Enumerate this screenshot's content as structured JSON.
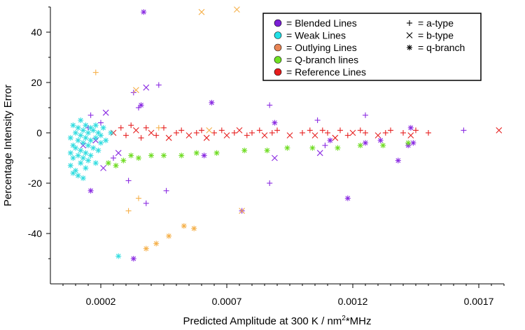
{
  "chart_data": {
    "type": "scatter",
    "title": "",
    "xlabel": "Predicted Amplitude at 300 K / nm",
    "xlabel_sup": "2",
    "xlabel_tail": "*MHz",
    "ylabel": "Percentage Intensity Error",
    "xlim": [
      0.0,
      0.0018
    ],
    "ylim": [
      -60,
      50
    ],
    "xticks": [
      0.0002,
      0.0007,
      0.0012,
      0.0017
    ],
    "xtick_labels": [
      "0.0002",
      "0.0007",
      "0.0012",
      "0.0017"
    ],
    "yticks": [
      -40,
      -20,
      0,
      20,
      40
    ],
    "ytick_labels": [
      "-40",
      "-20",
      "0",
      "20",
      "40"
    ],
    "grid": false,
    "legend_position": "top-right",
    "colors": {
      "blended": "#8a2be2",
      "weak": "#33dde0",
      "outlying": "#f5b04a",
      "qbranch": "#6fdc22",
      "reference": "#e62020"
    },
    "legend": {
      "colors": [
        {
          "key": "blended",
          "label": "= Blended Lines",
          "color": "#7b1fd6"
        },
        {
          "key": "weak",
          "label": "= Weak Lines",
          "color": "#22e0e6"
        },
        {
          "key": "outlying",
          "label": "= Outlying Lines",
          "color": "#e88455"
        },
        {
          "key": "qbranch",
          "label": "= Q-branch lines",
          "color": "#6fe022"
        },
        {
          "key": "reference",
          "label": "= Reference Lines",
          "color": "#e61c1c"
        }
      ],
      "markers": [
        {
          "marker": "plus",
          "label": "= a-type"
        },
        {
          "marker": "x",
          "label": "= b-type"
        },
        {
          "marker": "star",
          "label": "= q-branch"
        }
      ]
    },
    "series": [
      {
        "key": "reference",
        "color": "#e62020",
        "points": [
          [
            0.00025,
            0,
            "x"
          ],
          [
            0.00028,
            2,
            "plus"
          ],
          [
            0.0003,
            -1,
            "plus"
          ],
          [
            0.00032,
            3,
            "plus"
          ],
          [
            0.00034,
            1,
            "x"
          ],
          [
            0.00036,
            -2,
            "plus"
          ],
          [
            0.00038,
            2,
            "plus"
          ],
          [
            0.0004,
            0,
            "x"
          ],
          [
            0.00042,
            -1,
            "plus"
          ],
          [
            0.00045,
            2,
            "plus"
          ],
          [
            0.00047,
            -2,
            "x"
          ],
          [
            0.0005,
            0,
            "plus"
          ],
          [
            0.00052,
            1,
            "plus"
          ],
          [
            0.00055,
            -1,
            "x"
          ],
          [
            0.00058,
            0,
            "plus"
          ],
          [
            0.0006,
            1,
            "plus"
          ],
          [
            0.00062,
            -2,
            "x"
          ],
          [
            0.00065,
            0,
            "plus"
          ],
          [
            0.00068,
            1,
            "plus"
          ],
          [
            0.0007,
            -1,
            "x"
          ],
          [
            0.00073,
            0,
            "plus"
          ],
          [
            0.00075,
            1,
            "x"
          ],
          [
            0.00078,
            -1,
            "plus"
          ],
          [
            0.0008,
            0,
            "plus"
          ],
          [
            0.00083,
            1,
            "plus"
          ],
          [
            0.00085,
            -1,
            "x"
          ],
          [
            0.00088,
            0,
            "plus"
          ],
          [
            0.0009,
            1,
            "plus"
          ],
          [
            0.00095,
            -1,
            "x"
          ],
          [
            0.001,
            0,
            "plus"
          ],
          [
            0.00103,
            1,
            "plus"
          ],
          [
            0.00105,
            -1,
            "x"
          ],
          [
            0.00108,
            1,
            "plus"
          ],
          [
            0.0011,
            0,
            "plus"
          ],
          [
            0.00113,
            -2,
            "x"
          ],
          [
            0.00115,
            1,
            "plus"
          ],
          [
            0.00118,
            -1,
            "plus"
          ],
          [
            0.0012,
            0,
            "x"
          ],
          [
            0.00123,
            1,
            "plus"
          ],
          [
            0.00125,
            0,
            "plus"
          ],
          [
            0.0013,
            -1,
            "x"
          ],
          [
            0.00133,
            0,
            "plus"
          ],
          [
            0.00135,
            1,
            "plus"
          ],
          [
            0.0014,
            0,
            "plus"
          ],
          [
            0.00143,
            -1,
            "x"
          ],
          [
            0.00145,
            1,
            "plus"
          ],
          [
            0.0015,
            0,
            "plus"
          ],
          [
            0.00178,
            1,
            "x"
          ]
        ]
      },
      {
        "key": "blended",
        "color": "#8a2be2",
        "points": [
          [
            0.00013,
            -5,
            "x"
          ],
          [
            0.00015,
            2,
            "plus"
          ],
          [
            0.00016,
            7,
            "plus"
          ],
          [
            0.00018,
            -3,
            "x"
          ],
          [
            0.0002,
            4,
            "plus"
          ],
          [
            0.00022,
            8,
            "x"
          ],
          [
            0.00016,
            -23,
            "star"
          ],
          [
            0.00033,
            16,
            "plus"
          ],
          [
            0.00036,
            11,
            "star"
          ],
          [
            0.00035,
            10,
            "plus"
          ],
          [
            0.00038,
            18,
            "x"
          ],
          [
            0.00043,
            19,
            "plus"
          ],
          [
            0.00037,
            48,
            "star"
          ],
          [
            0.00031,
            -19,
            "plus"
          ],
          [
            0.00038,
            -28,
            "plus"
          ],
          [
            0.00046,
            -23,
            "plus"
          ],
          [
            0.00033,
            -50,
            "star"
          ],
          [
            0.00061,
            -9,
            "star"
          ],
          [
            0.00064,
            12,
            "star"
          ],
          [
            0.00076,
            -31,
            "star"
          ],
          [
            0.00087,
            -20,
            "plus"
          ],
          [
            0.00087,
            11,
            "plus"
          ],
          [
            0.00089,
            4,
            "star"
          ],
          [
            0.00089,
            -10,
            "x"
          ],
          [
            0.00106,
            5,
            "plus"
          ],
          [
            0.00107,
            -8,
            "x"
          ],
          [
            0.00109,
            -5,
            "plus"
          ],
          [
            0.00111,
            -3,
            "star"
          ],
          [
            0.00118,
            -26,
            "star"
          ],
          [
            0.00125,
            7,
            "plus"
          ],
          [
            0.00125,
            -4,
            "star"
          ],
          [
            0.00131,
            -3,
            "star"
          ],
          [
            0.00138,
            -11,
            "star"
          ],
          [
            0.00142,
            -5,
            "star"
          ],
          [
            0.00143,
            2,
            "star"
          ],
          [
            0.00144,
            -4,
            "star"
          ],
          [
            0.00164,
            1,
            "plus"
          ],
          [
            0.00021,
            -14,
            "x"
          ],
          [
            0.00027,
            -8,
            "x"
          ],
          [
            0.00025,
            -10,
            "plus"
          ]
        ]
      },
      {
        "key": "weak",
        "color": "#33dde0",
        "points": [
          [
            8e-05,
            -2,
            "star"
          ],
          [
            8e-05,
            -8,
            "star"
          ],
          [
            8e-05,
            -13,
            "star"
          ],
          [
            9e-05,
            3,
            "star"
          ],
          [
            9e-05,
            -5,
            "star"
          ],
          [
            9e-05,
            -10,
            "star"
          ],
          [
            0.0001,
            0,
            "star"
          ],
          [
            0.0001,
            -6,
            "star"
          ],
          [
            0.0001,
            -15,
            "star"
          ],
          [
            0.00011,
            2,
            "star"
          ],
          [
            0.00011,
            -3,
            "star"
          ],
          [
            0.00011,
            -9,
            "star"
          ],
          [
            0.00011,
            -17,
            "star"
          ],
          [
            0.00012,
            5,
            "star"
          ],
          [
            0.00012,
            -1,
            "star"
          ],
          [
            0.00012,
            -7,
            "star"
          ],
          [
            0.00012,
            -12,
            "star"
          ],
          [
            0.00013,
            1,
            "star"
          ],
          [
            0.00013,
            -4,
            "star"
          ],
          [
            0.00013,
            -10,
            "star"
          ],
          [
            0.00014,
            3,
            "star"
          ],
          [
            0.00014,
            -2,
            "star"
          ],
          [
            0.00014,
            -8,
            "star"
          ],
          [
            0.00014,
            -14,
            "star"
          ],
          [
            0.00015,
            0,
            "star"
          ],
          [
            0.00015,
            -5,
            "star"
          ],
          [
            0.00015,
            -11,
            "star"
          ],
          [
            0.00016,
            2,
            "star"
          ],
          [
            0.00016,
            -3,
            "star"
          ],
          [
            0.00016,
            -9,
            "star"
          ],
          [
            0.00017,
            1,
            "star"
          ],
          [
            0.00017,
            -6,
            "star"
          ],
          [
            0.00018,
            3,
            "star"
          ],
          [
            0.00018,
            -2,
            "star"
          ],
          [
            0.00018,
            -12,
            "star"
          ],
          [
            0.00019,
            0,
            "star"
          ],
          [
            0.00019,
            -7,
            "star"
          ],
          [
            0.0002,
            -1,
            "star"
          ],
          [
            0.0002,
            -4,
            "star"
          ],
          [
            0.00021,
            2,
            "star"
          ],
          [
            0.00022,
            -3,
            "star"
          ],
          [
            0.00024,
            0,
            "star"
          ],
          [
            0.00027,
            -49,
            "star"
          ],
          [
            9e-05,
            -16,
            "star"
          ],
          [
            0.00013,
            -18,
            "star"
          ]
        ]
      },
      {
        "key": "outlying",
        "color": "#f5b04a",
        "points": [
          [
            0.00018,
            24,
            "plus"
          ],
          [
            0.00034,
            17,
            "x"
          ],
          [
            0.00031,
            -31,
            "plus"
          ],
          [
            0.00035,
            -26,
            "plus"
          ],
          [
            0.00038,
            -46,
            "star"
          ],
          [
            0.00042,
            -44,
            "star"
          ],
          [
            0.00047,
            -41,
            "star"
          ],
          [
            0.00053,
            -37,
            "star"
          ],
          [
            0.00057,
            -38,
            "star"
          ],
          [
            0.0006,
            48,
            "x"
          ],
          [
            0.00076,
            -31,
            "x"
          ],
          [
            0.00074,
            49,
            "x"
          ],
          [
            0.00043,
            2,
            "plus"
          ],
          [
            0.00063,
            1,
            "x"
          ]
        ]
      },
      {
        "key": "qbranch",
        "color": "#6fdc22",
        "points": [
          [
            0.00023,
            -12,
            "star"
          ],
          [
            0.00026,
            -13,
            "star"
          ],
          [
            0.00029,
            -11,
            "star"
          ],
          [
            0.00032,
            -9,
            "star"
          ],
          [
            0.00035,
            -10,
            "star"
          ],
          [
            0.0004,
            -9,
            "star"
          ],
          [
            0.00045,
            -9,
            "star"
          ],
          [
            0.00052,
            -9,
            "star"
          ],
          [
            0.00058,
            -8,
            "star"
          ],
          [
            0.00066,
            -8,
            "star"
          ],
          [
            0.00077,
            -7,
            "star"
          ],
          [
            0.00086,
            -7,
            "star"
          ],
          [
            0.00094,
            -6,
            "star"
          ],
          [
            0.00104,
            -6,
            "star"
          ],
          [
            0.00114,
            -6,
            "star"
          ],
          [
            0.00123,
            -5,
            "star"
          ],
          [
            0.00132,
            -5,
            "star"
          ],
          [
            0.00142,
            -4,
            "star"
          ]
        ]
      }
    ]
  }
}
